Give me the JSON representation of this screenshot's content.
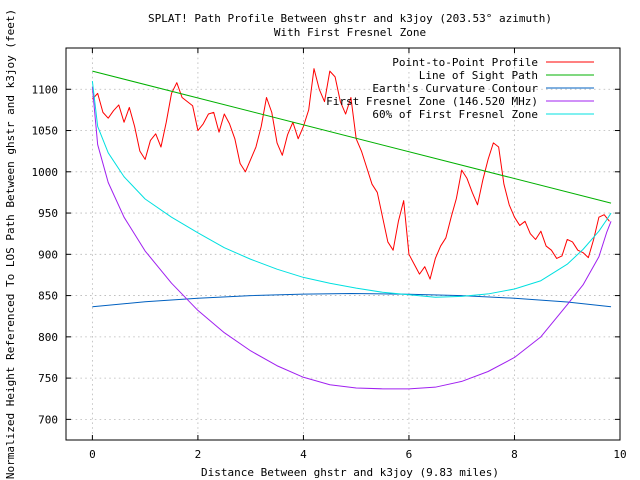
{
  "chart_data": {
    "type": "line",
    "title": "SPLAT! Path Profile Between ghstr and k3joy (203.53° azimuth)",
    "subtitle": "With First Fresnel Zone",
    "xlabel": "Distance Between ghstr and k3joy (9.83 miles)",
    "ylabel": "Normalized Height Referenced To LOS Path Between ghstr and k3joy (feet)",
    "xlim": [
      -0.5,
      10
    ],
    "ylim": [
      675,
      1150
    ],
    "x_ticks": [
      "0",
      "2",
      "4",
      "6",
      "8",
      "10"
    ],
    "y_ticks": [
      "700",
      "750",
      "800",
      "850",
      "900",
      "950",
      "1000",
      "1050",
      "1100"
    ],
    "grid": true,
    "legend_position": "top-right",
    "series": [
      {
        "name": "Point-to-Point Profile",
        "color": "#ff0000",
        "x": [
          0,
          0.1,
          0.2,
          0.3,
          0.4,
          0.5,
          0.6,
          0.7,
          0.8,
          0.9,
          1.0,
          1.1,
          1.2,
          1.3,
          1.4,
          1.5,
          1.6,
          1.7,
          1.8,
          1.9,
          2.0,
          2.1,
          2.2,
          2.3,
          2.4,
          2.5,
          2.6,
          2.7,
          2.8,
          2.9,
          3.0,
          3.1,
          3.2,
          3.3,
          3.4,
          3.5,
          3.6,
          3.7,
          3.8,
          3.9,
          4.0,
          4.1,
          4.2,
          4.3,
          4.4,
          4.5,
          4.6,
          4.7,
          4.8,
          4.9,
          5.0,
          5.1,
          5.2,
          5.3,
          5.4,
          5.5,
          5.6,
          5.7,
          5.8,
          5.9,
          6.0,
          6.1,
          6.2,
          6.3,
          6.4,
          6.5,
          6.6,
          6.7,
          6.8,
          6.9,
          7.0,
          7.1,
          7.2,
          7.3,
          7.4,
          7.5,
          7.6,
          7.7,
          7.8,
          7.9,
          8.0,
          8.1,
          8.2,
          8.3,
          8.4,
          8.5,
          8.6,
          8.7,
          8.8,
          8.9,
          9.0,
          9.1,
          9.2,
          9.3,
          9.4,
          9.5,
          9.6,
          9.7,
          9.8
        ],
        "values": [
          1088,
          1095,
          1072,
          1065,
          1074,
          1081,
          1060,
          1078,
          1055,
          1025,
          1015,
          1038,
          1046,
          1030,
          1060,
          1095,
          1108,
          1090,
          1085,
          1080,
          1050,
          1058,
          1070,
          1072,
          1048,
          1070,
          1058,
          1040,
          1010,
          1000,
          1015,
          1030,
          1055,
          1090,
          1072,
          1035,
          1020,
          1045,
          1060,
          1040,
          1055,
          1075,
          1125,
          1100,
          1085,
          1122,
          1115,
          1085,
          1070,
          1090,
          1040,
          1025,
          1005,
          985,
          975,
          945,
          915,
          905,
          940,
          965,
          900,
          888,
          876,
          885,
          870,
          895,
          910,
          920,
          945,
          968,
          1002,
          992,
          975,
          960,
          990,
          1015,
          1035,
          1030,
          985,
          960,
          945,
          935,
          940,
          925,
          918,
          928,
          910,
          905,
          895,
          898,
          918,
          915,
          905,
          902,
          896,
          918,
          945,
          948,
          940
        ]
      },
      {
        "name": "Line of Sight Path",
        "color": "#00b000",
        "x": [
          0,
          9.83
        ],
        "values": [
          1122,
          962
        ]
      },
      {
        "name": "Earth's Curvature Contour",
        "color": "#0060c0",
        "x": [
          0,
          1,
          2,
          3,
          4,
          4.915,
          6,
          7,
          8,
          9,
          9.83
        ],
        "values": [
          836.5,
          842.5,
          846.8,
          850.0,
          851.8,
          852.5,
          851.6,
          850.0,
          846.8,
          842.2,
          836.5
        ]
      },
      {
        "name": "First Fresnel Zone (146.520 MHz)",
        "color": "#a020f0",
        "x": [
          0,
          0.1,
          0.3,
          0.6,
          1.0,
          1.5,
          2.0,
          2.5,
          3.0,
          3.5,
          4.0,
          4.5,
          5.0,
          5.5,
          6.0,
          6.5,
          7.0,
          7.5,
          8.0,
          8.5,
          9.0,
          9.3,
          9.6,
          9.75,
          9.83
        ],
        "values": [
          1103,
          1033,
          987,
          945,
          904,
          865,
          832,
          805,
          783,
          765,
          751,
          742,
          738,
          737,
          737,
          739,
          746,
          758,
          775,
          800,
          839,
          863,
          897,
          927,
          940
        ]
      },
      {
        "name": "60% of First Fresnel Zone",
        "color": "#00e0e0",
        "x": [
          0,
          0.1,
          0.3,
          0.6,
          1.0,
          1.5,
          2.0,
          2.5,
          3.0,
          3.5,
          4.0,
          4.5,
          5.0,
          5.5,
          6.0,
          6.5,
          7.0,
          7.5,
          8.0,
          8.5,
          9.0,
          9.3,
          9.6,
          9.75,
          9.83
        ],
        "values": [
          1110,
          1055,
          1023,
          994,
          967,
          945,
          926,
          908,
          894,
          882,
          872,
          865,
          859,
          854,
          851,
          848,
          849,
          852,
          858,
          868,
          888,
          906,
          928,
          942,
          950
        ]
      }
    ]
  }
}
